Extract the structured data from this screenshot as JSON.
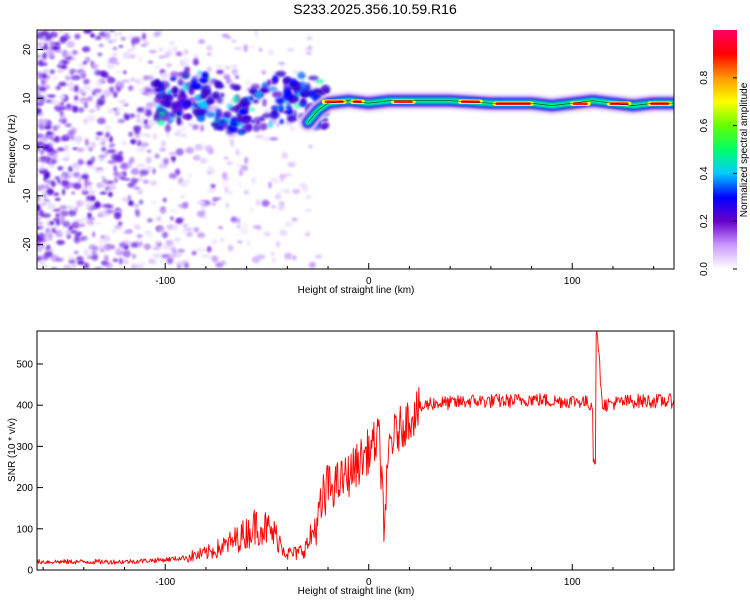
{
  "figure": {
    "title": "S233.2025.356.10.59.R16"
  },
  "chart_data": [
    {
      "type": "heatmap",
      "xlabel": "Height of straight line (km)",
      "ylabel": "Frequency (Hz)",
      "xlim": [
        -163,
        150
      ],
      "ylim": [
        -25,
        24
      ],
      "xticks": [
        "-100",
        "0",
        "100"
      ],
      "yticks": [
        "20",
        "10",
        "0",
        "-10",
        "-20"
      ],
      "colorbar": {
        "label": "Normalized spectral amplitude",
        "range": [
          0,
          1
        ],
        "ticks": [
          "0.0",
          "0.2",
          "0.4",
          "0.6",
          "0.8"
        ],
        "colors": [
          "#ffffff",
          "#cc99ff",
          "#6600cc",
          "#0000ff",
          "#00ccff",
          "#00ff66",
          "#66ff00",
          "#ffff00",
          "#ff9900",
          "#ff0000",
          "#ff0066"
        ]
      },
      "ridge": {
        "description_points_x": [
          -105,
          -90,
          -80,
          -70,
          -60,
          -50,
          -40,
          -30,
          -25,
          -20,
          -10,
          0,
          10,
          20,
          40,
          60,
          80,
          90,
          100,
          110,
          120,
          130,
          140,
          150
        ],
        "frequency_hz": [
          8.5,
          9.5,
          10.5,
          10,
          9.5,
          9,
          8,
          5,
          7.5,
          9,
          9.5,
          9,
          9.5,
          9.5,
          9.5,
          9,
          9,
          8.5,
          9,
          9.5,
          9,
          8.5,
          9,
          9
        ]
      }
    },
    {
      "type": "line",
      "xlabel": "Height of straight line (km)",
      "ylabel": "SNR (10 * v/v)",
      "xlim": [
        -163,
        150
      ],
      "ylim": [
        0,
        580
      ],
      "xticks": [
        "-100",
        "0",
        "100"
      ],
      "yticks": [
        "500",
        "400",
        "300",
        "200",
        "100",
        "0"
      ],
      "series": [
        {
          "color": "#ff0000",
          "x": [
            -163,
            -140,
            -120,
            -100,
            -90,
            -80,
            -70,
            -60,
            -55,
            -50,
            -45,
            -40,
            -35,
            -30,
            -25,
            -20,
            -15,
            -10,
            -5,
            0,
            5,
            8,
            10,
            15,
            20,
            25,
            30,
            40,
            50,
            60,
            70,
            80,
            90,
            100,
            105,
            110,
            112,
            115,
            120,
            130,
            140,
            150
          ],
          "y": [
            20,
            20,
            20,
            25,
            30,
            40,
            60,
            90,
            110,
            100,
            80,
            40,
            40,
            60,
            120,
            200,
            210,
            230,
            260,
            290,
            320,
            120,
            310,
            340,
            370,
            390,
            405,
            405,
            410,
            410,
            410,
            415,
            410,
            410,
            410,
            400,
            580,
            400,
            405,
            410,
            410,
            410
          ]
        }
      ]
    }
  ]
}
